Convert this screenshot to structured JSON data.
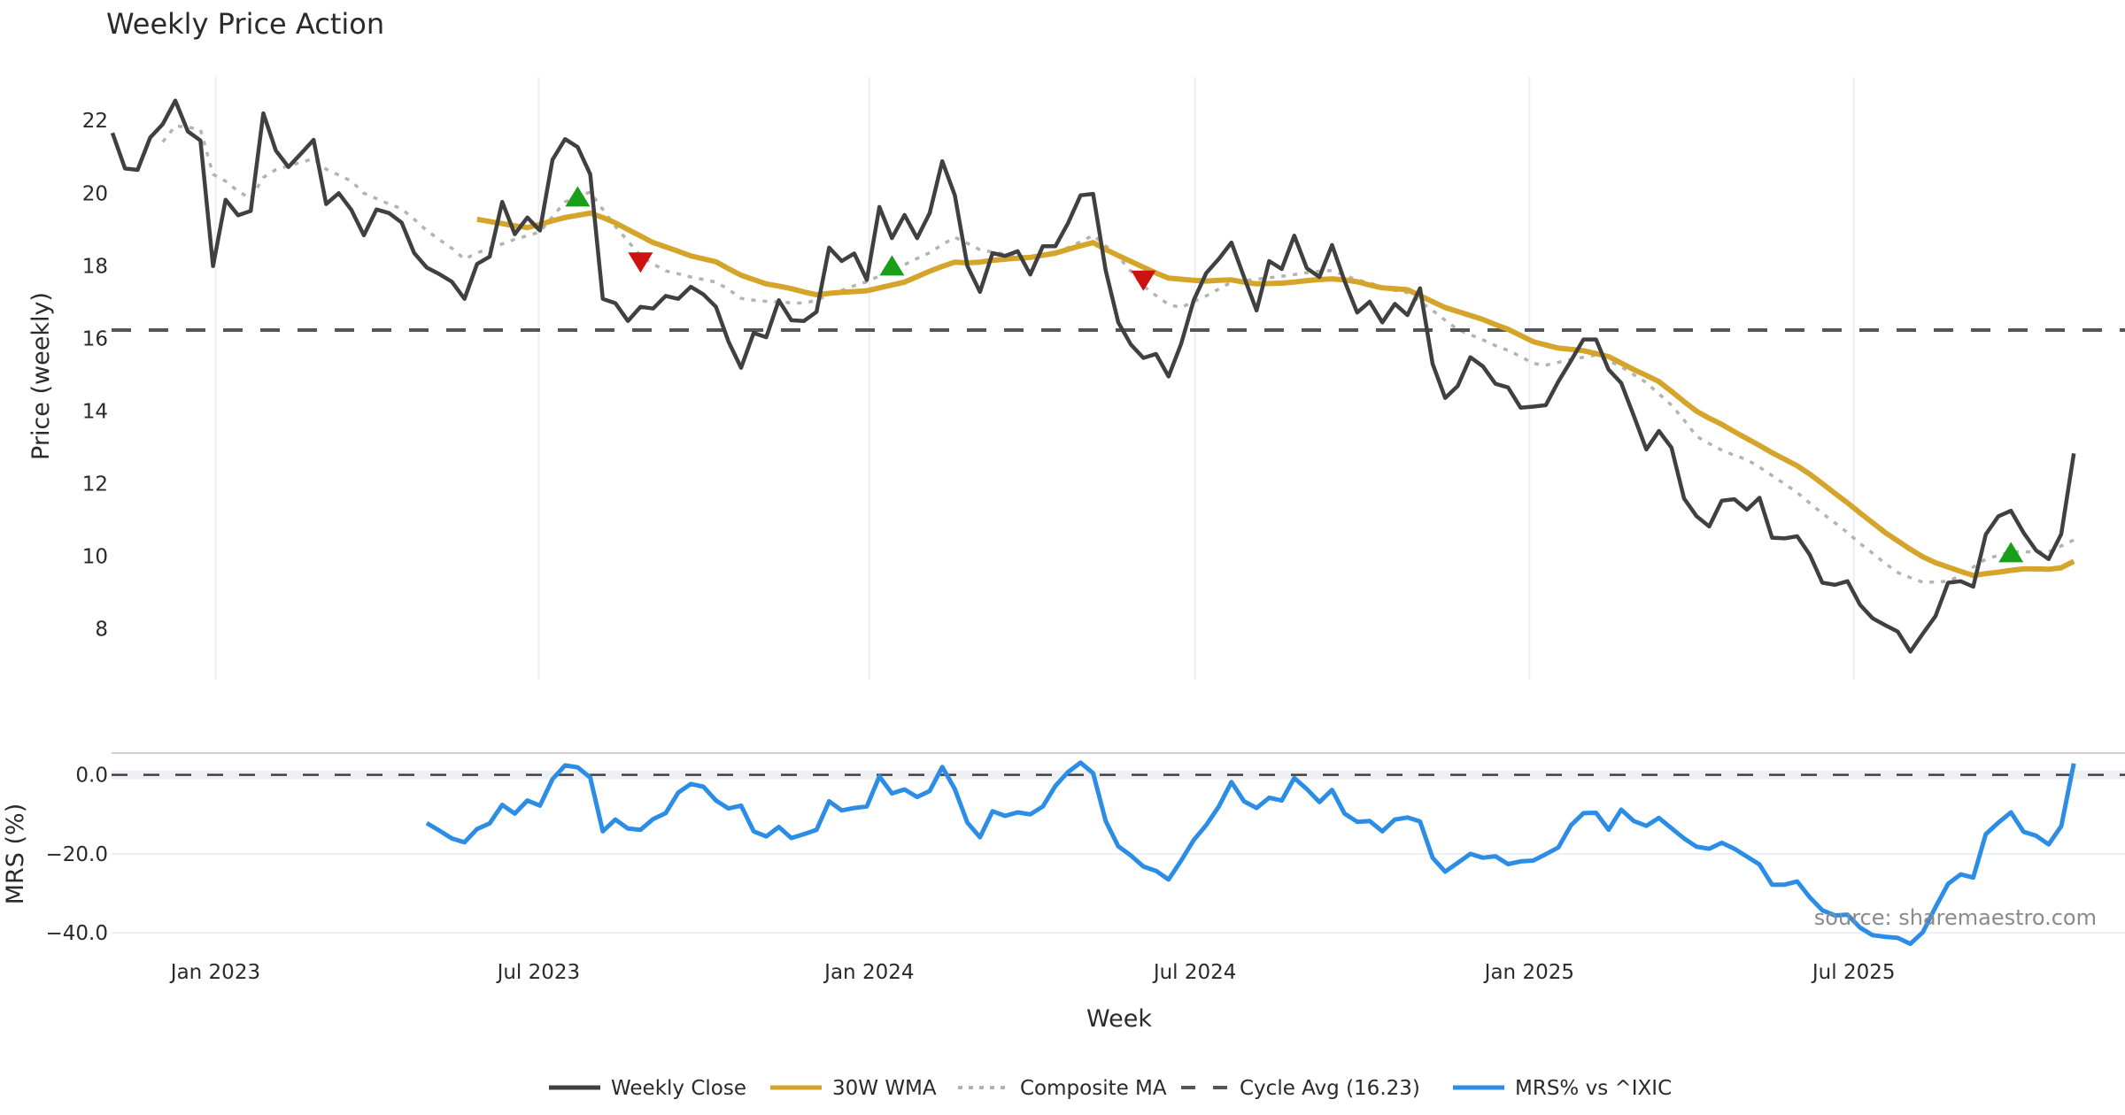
{
  "chart_data": {
    "type": "line",
    "title": "Weekly Price Action",
    "xlabel": "Week",
    "x_unit": "week index (weekly bars)",
    "x_ticks": [
      {
        "label": "Jan 2023",
        "value": 8.2
      },
      {
        "label": "Jul 2023",
        "value": 33.9
      },
      {
        "label": "Jan 2024",
        "value": 60.2
      },
      {
        "label": "Jul 2024",
        "value": 86.1
      },
      {
        "label": "Jan 2025",
        "value": 112.7
      },
      {
        "label": "Jul 2025",
        "value": 138.5
      }
    ],
    "xlim": [
      0,
      160
    ],
    "source": "source: sharemaestro.com",
    "panels": [
      {
        "name": "price",
        "ylabel": "Price (weekly)",
        "ylim": [
          6.6,
          23.2
        ],
        "y_ticks": [
          8,
          10,
          12,
          14,
          16,
          18,
          20,
          22
        ],
        "y_tick_labels": [
          "8",
          "10",
          "12",
          "14",
          "16",
          "18",
          "20",
          "22"
        ],
        "grid": "vertical",
        "series": [
          {
            "name": "Weekly Close",
            "color": "#404040",
            "style": "solid",
            "start_index": 0,
            "values": [
              21.66,
              20.68,
              20.64,
              21.53,
              21.9,
              22.55,
              21.7,
              21.45,
              17.99,
              19.82,
              19.39,
              19.51,
              22.2,
              21.17,
              20.72,
              21.09,
              21.47,
              19.7,
              20.0,
              19.54,
              18.84,
              19.55,
              19.45,
              19.19,
              18.35,
              17.95,
              17.77,
              17.56,
              17.09,
              18.05,
              18.25,
              19.76,
              18.87,
              19.33,
              18.97,
              20.92,
              21.49,
              21.27,
              20.52,
              17.09,
              16.97,
              16.48,
              16.87,
              16.82,
              17.17,
              17.09,
              17.42,
              17.21,
              16.87,
              15.91,
              15.19,
              16.15,
              16.03,
              17.05,
              16.5,
              16.48,
              16.73,
              18.5,
              18.13,
              18.34,
              17.61,
              19.62,
              18.76,
              19.4,
              18.76,
              19.45,
              20.88,
              19.94,
              17.99,
              17.28,
              18.35,
              18.27,
              18.4,
              17.76,
              18.54,
              18.54,
              19.17,
              19.94,
              19.98,
              17.87,
              16.44,
              15.83,
              15.46,
              15.57,
              14.95,
              15.85,
              17.05,
              17.8,
              18.19,
              18.64,
              17.69,
              16.77,
              18.13,
              17.91,
              18.83,
              17.93,
              17.69,
              18.57,
              17.58,
              16.71,
              17.01,
              16.44,
              16.95,
              16.64,
              17.38,
              15.3,
              14.36,
              14.69,
              15.48,
              15.23,
              14.75,
              14.65,
              14.09,
              14.12,
              14.16,
              14.81,
              15.38,
              15.97,
              15.97,
              15.14,
              14.77,
              13.87,
              12.94,
              13.45,
              12.99,
              11.59,
              11.1,
              10.82,
              11.53,
              11.57,
              11.28,
              11.61,
              10.51,
              10.49,
              10.55,
              10.04,
              9.27,
              9.21,
              9.31,
              8.66,
              8.29,
              8.1,
              7.92,
              7.37,
              7.87,
              8.35,
              9.27,
              9.31,
              9.16,
              10.6,
              11.1,
              11.25,
              10.65,
              10.16,
              9.92,
              10.61,
              12.83
            ]
          },
          {
            "name": "30W WMA",
            "color": "#d4a52a",
            "style": "solid",
            "start_index": 29,
            "values": [
              19.28,
              19.22,
              19.16,
              19.1,
              19.05,
              19.14,
              19.24,
              19.33,
              19.39,
              19.45,
              19.33,
              19.18,
              19.0,
              18.82,
              18.64,
              18.52,
              18.4,
              18.27,
              18.19,
              18.11,
              17.92,
              17.74,
              17.62,
              17.5,
              17.44,
              17.37,
              17.28,
              17.2,
              17.24,
              17.27,
              17.29,
              17.31,
              17.39,
              17.47,
              17.55,
              17.7,
              17.85,
              17.98,
              18.1,
              18.08,
              18.1,
              18.15,
              18.18,
              18.21,
              18.23,
              18.29,
              18.35,
              18.45,
              18.55,
              18.64,
              18.45,
              18.28,
              18.12,
              17.96,
              17.8,
              17.66,
              17.63,
              17.6,
              17.58,
              17.6,
              17.61,
              17.55,
              17.5,
              17.51,
              17.52,
              17.55,
              17.59,
              17.62,
              17.64,
              17.61,
              17.56,
              17.47,
              17.39,
              17.37,
              17.34,
              17.18,
              17.01,
              16.85,
              16.74,
              16.63,
              16.52,
              16.38,
              16.25,
              16.08,
              15.91,
              15.82,
              15.73,
              15.7,
              15.66,
              15.58,
              15.5,
              15.32,
              15.14,
              14.98,
              14.81,
              14.54,
              14.26,
              13.99,
              13.8,
              13.63,
              13.43,
              13.24,
              13.05,
              12.85,
              12.67,
              12.49,
              12.26,
              12.0,
              11.73,
              11.47,
              11.19,
              10.92,
              10.65,
              10.42,
              10.19,
              9.98,
              9.82,
              9.7,
              9.58,
              9.47,
              9.52,
              9.56,
              9.61,
              9.65,
              9.65,
              9.64,
              9.68,
              9.86
            ]
          },
          {
            "name": "Composite MA",
            "color": "#b3b3b3",
            "style": "dotted",
            "start_index": 4,
            "values": [
              21.41,
              21.85,
              21.82,
              21.75,
              20.52,
              20.33,
              20.05,
              19.85,
              20.43,
              20.65,
              20.75,
              20.85,
              20.95,
              20.66,
              20.5,
              20.33,
              20.0,
              19.85,
              19.7,
              19.57,
              19.28,
              18.97,
              18.72,
              18.48,
              18.18,
              18.36,
              18.47,
              18.6,
              18.73,
              18.83,
              18.93,
              19.35,
              19.76,
              19.9,
              20.03,
              19.55,
              19.08,
              18.68,
              18.27,
              18.05,
              17.86,
              17.78,
              17.69,
              17.62,
              17.55,
              17.35,
              17.1,
              17.05,
              17.02,
              17.0,
              16.98,
              16.97,
              17.05,
              17.2,
              17.32,
              17.45,
              17.56,
              17.72,
              17.88,
              18.03,
              18.2,
              18.36,
              18.58,
              18.78,
              18.62,
              18.44,
              18.38,
              18.32,
              18.27,
              18.23,
              18.28,
              18.33,
              18.5,
              18.66,
              18.84,
              18.55,
              18.25,
              17.85,
              17.44,
              17.18,
              16.93,
              16.85,
              17.01,
              17.17,
              17.36,
              17.55,
              17.59,
              17.63,
              17.67,
              17.71,
              17.76,
              17.81,
              17.85,
              17.87,
              17.74,
              17.61,
              17.53,
              17.4,
              17.32,
              17.26,
              17.01,
              16.77,
              16.5,
              16.24,
              16.1,
              15.96,
              15.8,
              15.67,
              15.5,
              15.31,
              15.26,
              15.34,
              15.42,
              15.48,
              15.54,
              15.38,
              15.22,
              15.0,
              14.78,
              14.47,
              14.16,
              13.75,
              13.3,
              13.1,
              12.92,
              12.78,
              12.66,
              12.45,
              12.22,
              11.99,
              11.75,
              11.46,
              11.18,
              10.92,
              10.65,
              10.35,
              10.08,
              9.8,
              9.55,
              9.41,
              9.28,
              9.29,
              9.31,
              9.47,
              9.7,
              9.92,
              10.02,
              10.12,
              10.12,
              10.12,
              10.12,
              10.28,
              10.45
            ]
          },
          {
            "name": "Cycle Avg (16.23)",
            "color": "#555555",
            "style": "dashed",
            "constant": 16.23
          }
        ],
        "markers": [
          {
            "type": "buy",
            "shape": "triangle-up",
            "color": "#1a9e1a",
            "index": 37,
            "value": 19.9
          },
          {
            "type": "sell",
            "shape": "triangle-down",
            "color": "#cc1111",
            "index": 42,
            "value": 18.1
          },
          {
            "type": "buy",
            "shape": "triangle-up",
            "color": "#1a9e1a",
            "index": 62,
            "value": 18.0
          },
          {
            "type": "sell",
            "shape": "triangle-down",
            "color": "#cc1111",
            "index": 82,
            "value": 17.6
          },
          {
            "type": "buy",
            "shape": "triangle-up",
            "color": "#1a9e1a",
            "index": 151,
            "value": 10.1
          }
        ]
      },
      {
        "name": "mrs",
        "ylabel": "MRS (%)",
        "ylim": [
          -44,
          3.5
        ],
        "y_ticks": [
          0,
          -20,
          -40
        ],
        "y_tick_labels": [
          "0.0",
          "−20.0",
          "−40.0"
        ],
        "grid": "horizontal",
        "zero_line": {
          "value": 0,
          "color": "#404040",
          "style": "dashed"
        },
        "series": [
          {
            "name": "MRS% vs ^IXIC",
            "color": "#2b8de6",
            "style": "solid",
            "start_index": 25,
            "values": [
              -12.2,
              -14.1,
              -16.1,
              -17.1,
              -13.7,
              -12.3,
              -7.6,
              -9.8,
              -6.5,
              -7.8,
              -1.1,
              2.4,
              1.9,
              -0.7,
              -14.3,
              -11.3,
              -13.6,
              -13.9,
              -11.2,
              -9.7,
              -4.5,
              -2.3,
              -3.0,
              -6.5,
              -8.5,
              -7.8,
              -14.3,
              -15.6,
              -13.2,
              -16.0,
              -15.0,
              -13.9,
              -6.7,
              -9.0,
              -8.4,
              -8.0,
              -0.4,
              -4.7,
              -3.7,
              -5.6,
              -4.1,
              2.0,
              -3.6,
              -12.1,
              -15.8,
              -9.2,
              -10.4,
              -9.5,
              -10.0,
              -8.0,
              -2.8,
              0.7,
              3.1,
              0.4,
              -11.7,
              -18.1,
              -20.4,
              -23.2,
              -24.3,
              -26.5,
              -21.7,
              -16.5,
              -12.7,
              -8.0,
              -1.8,
              -6.7,
              -8.4,
              -5.8,
              -6.5,
              -0.8,
              -3.6,
              -6.9,
              -3.8,
              -9.8,
              -11.9,
              -11.7,
              -14.3,
              -11.3,
              -10.8,
              -11.8,
              -21.0,
              -24.5,
              -22.3,
              -20.0,
              -21.0,
              -20.6,
              -22.6,
              -21.9,
              -21.7,
              -20.1,
              -18.4,
              -12.8,
              -9.7,
              -9.6,
              -13.9,
              -8.8,
              -11.7,
              -12.9,
              -10.9,
              -13.5,
              -16.1,
              -18.2,
              -18.7,
              -17.2,
              -18.7,
              -20.7,
              -22.7,
              -27.8,
              -27.8,
              -27.0,
              -31.0,
              -34.3,
              -35.6,
              -35.4,
              -38.7,
              -40.6,
              -41.0,
              -41.3,
              -42.8,
              -39.8,
              -33.5,
              -27.6,
              -25.2,
              -26.0,
              -15.0,
              -12.1,
              -9.5,
              -14.4,
              -15.4,
              -17.6,
              -13.0,
              2.9
            ]
          }
        ]
      }
    ],
    "legend": {
      "placement": "bottom-center",
      "entries": [
        {
          "label": "Weekly Close",
          "color": "#404040",
          "style": "solid"
        },
        {
          "label": "30W WMA",
          "color": "#d4a52a",
          "style": "solid"
        },
        {
          "label": "Composite MA",
          "color": "#b3b3b3",
          "style": "dotted"
        },
        {
          "label": "Cycle Avg (16.23)",
          "color": "#555555",
          "style": "dashed"
        },
        {
          "label": "MRS% vs ^IXIC",
          "color": "#2b8de6",
          "style": "solid"
        }
      ]
    }
  }
}
